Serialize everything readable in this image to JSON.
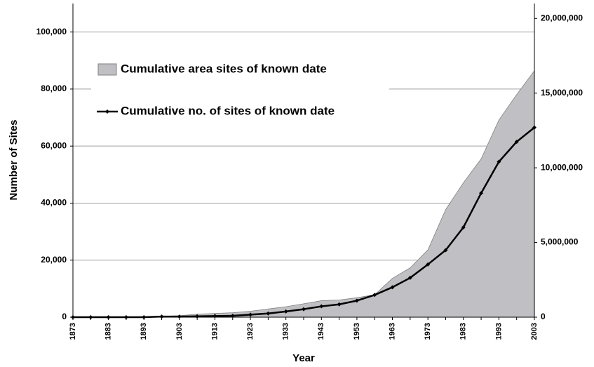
{
  "chart_data": {
    "type": "line",
    "x_label": "Year",
    "y_label": "Number of Sites",
    "x": [
      1873,
      1878,
      1883,
      1888,
      1893,
      1898,
      1903,
      1908,
      1913,
      1918,
      1923,
      1928,
      1933,
      1938,
      1943,
      1948,
      1953,
      1958,
      1963,
      1968,
      1973,
      1978,
      1983,
      1988,
      1993,
      1998,
      2003
    ],
    "xlim": [
      1873,
      2003
    ],
    "xticks": [
      1873,
      1883,
      1893,
      1903,
      1913,
      1923,
      1933,
      1943,
      1953,
      1963,
      1973,
      1983,
      1993,
      2003
    ],
    "ylim": [
      0,
      110000
    ],
    "yticks": [
      0,
      {
        "value": 20000,
        "label": "20,000"
      },
      {
        "value": 40000,
        "label": "40,000"
      },
      {
        "value": 60000,
        "label": "60,000"
      },
      {
        "value": 80000,
        "label": "80,000"
      },
      {
        "value": 100000,
        "label": "100,000"
      }
    ],
    "y2lim": [
      0,
      21000000
    ],
    "y2ticks": [
      0,
      {
        "value": 5000000,
        "label": "5,000,000"
      },
      {
        "value": 10000000,
        "label": "10,000,000"
      },
      {
        "value": 15000000,
        "label": "15,000,000"
      },
      {
        "value": 20000000,
        "label": "20,000,000"
      }
    ],
    "grid": true,
    "legend": "upper left",
    "series": [
      {
        "name": "Cumulative area sites of known date",
        "type": "area",
        "axis": "y2",
        "color": "#c0c0c4",
        "values": [
          0,
          0,
          0,
          0,
          0,
          50000,
          100000,
          200000,
          250000,
          300000,
          400000,
          550000,
          700000,
          900000,
          1100000,
          1150000,
          1300000,
          1500000,
          2600000,
          3300000,
          4500000,
          7200000,
          9000000,
          10600000,
          13200000,
          14900000,
          16500000
        ]
      },
      {
        "name": "Cumulative no. of sites of known date",
        "type": "line",
        "color": "#000000",
        "values": [
          0,
          0,
          0,
          0,
          0,
          200,
          200,
          300,
          400,
          500,
          900,
          1300,
          2000,
          2800,
          3800,
          4500,
          5800,
          7800,
          10500,
          13800,
          18500,
          23500,
          31500,
          43500,
          54500,
          61500,
          66500
        ]
      }
    ]
  }
}
